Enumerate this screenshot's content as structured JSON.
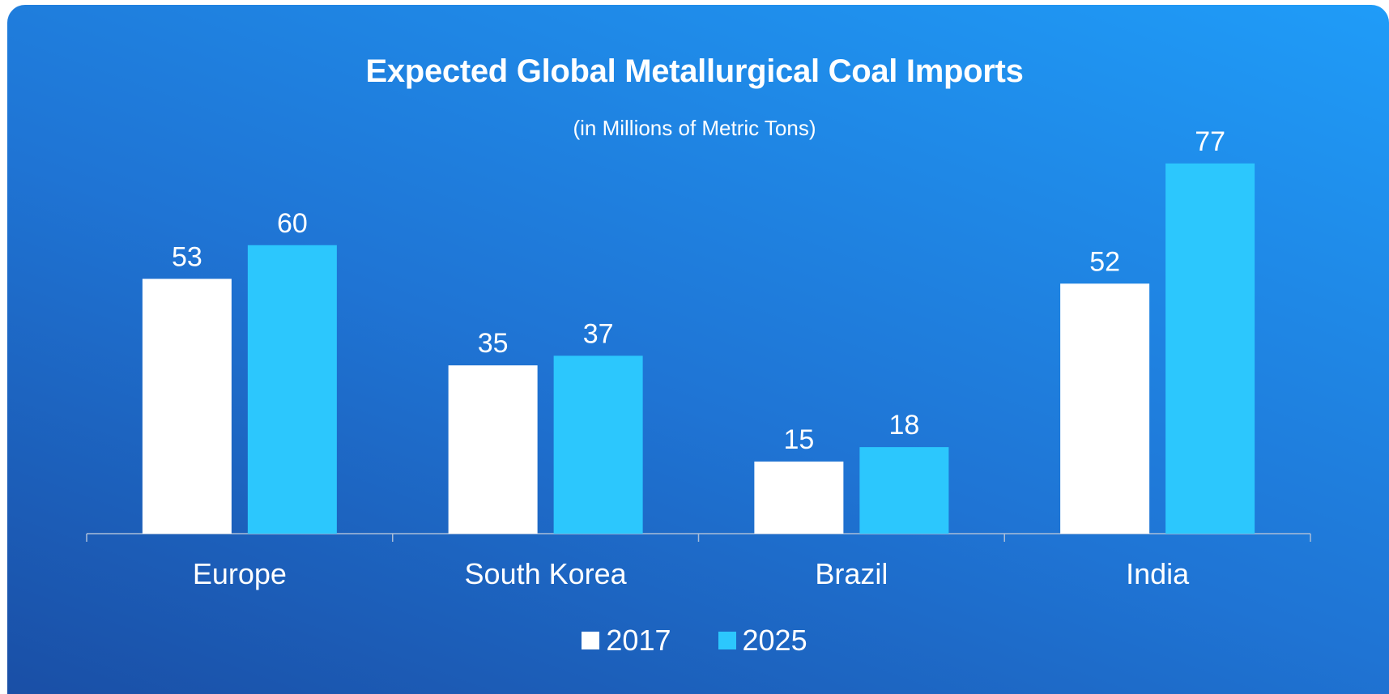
{
  "chart_data": {
    "type": "bar",
    "title": "Expected Global Metallurgical Coal Imports",
    "subtitle": "(in Millions of Metric Tons)",
    "categories": [
      "Europe",
      "South Korea",
      "Brazil",
      "India"
    ],
    "series": [
      {
        "name": "2017",
        "values": [
          53,
          35,
          15,
          52
        ],
        "color": "#ffffff"
      },
      {
        "name": "2025",
        "values": [
          60,
          37,
          18,
          77
        ],
        "color": "#2cc7fd"
      }
    ],
    "ylim": [
      0,
      80
    ],
    "grid": false,
    "legend": "bottom",
    "xlabel": "",
    "ylabel": ""
  }
}
